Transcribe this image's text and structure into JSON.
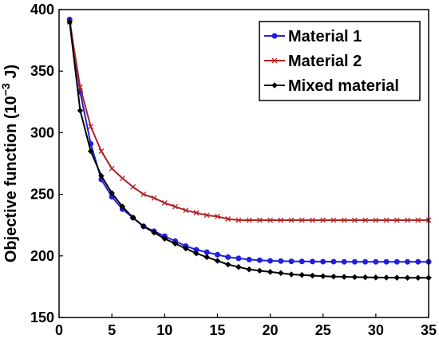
{
  "chart_data": {
    "type": "line",
    "title": "",
    "xlabel": "",
    "ylabel": {
      "text": "Objective function (10",
      "sup": "−3",
      "unit": " J)"
    },
    "xlim": [
      0,
      35
    ],
    "ylim": [
      150,
      400
    ],
    "xticks": [
      0,
      5,
      10,
      15,
      20,
      25,
      30,
      35
    ],
    "yticks": [
      150,
      200,
      250,
      300,
      350,
      400
    ],
    "grid": false,
    "legend_position": "top-right",
    "x": [
      1,
      2,
      3,
      4,
      5,
      6,
      7,
      8,
      9,
      10,
      11,
      12,
      13,
      14,
      15,
      16,
      17,
      18,
      19,
      20,
      21,
      22,
      23,
      24,
      25,
      26,
      27,
      28,
      29,
      30,
      31,
      32,
      33,
      34,
      35
    ],
    "series": [
      {
        "name": "Material 1",
        "color": "#1f1fe0",
        "marker": "dot",
        "values": [
          392,
          333,
          291,
          262,
          248,
          238,
          231,
          224,
          220,
          216,
          212,
          208,
          205,
          203,
          201,
          199,
          198,
          197,
          196.5,
          196,
          195.8,
          195.6,
          195.5,
          195.4,
          195.3,
          195.3,
          195.2,
          195.2,
          195.2,
          195.2,
          195.2,
          195.2,
          195.2,
          195.2,
          195.2
        ]
      },
      {
        "name": "Material 2",
        "color": "#b22222",
        "marker": "x",
        "values": [
          390,
          337,
          305,
          285,
          271,
          263,
          256,
          250,
          247,
          243,
          240,
          237,
          235,
          233,
          232,
          230,
          229,
          229,
          229,
          229,
          229,
          229,
          229,
          229,
          229,
          229,
          229,
          229,
          229,
          229,
          229,
          229,
          229,
          229,
          229
        ]
      },
      {
        "name": "Mixed material",
        "color": "#000000",
        "marker": "diamond",
        "values": [
          390,
          318,
          285,
          265,
          251,
          240,
          231,
          224,
          219,
          214,
          210,
          206,
          202,
          199,
          196,
          193,
          191,
          189,
          188,
          187,
          186,
          185,
          184.5,
          184,
          183.5,
          183.2,
          183,
          182.8,
          182.6,
          182.5,
          182.4,
          182.3,
          182.2,
          182.2,
          182.2
        ]
      }
    ]
  }
}
